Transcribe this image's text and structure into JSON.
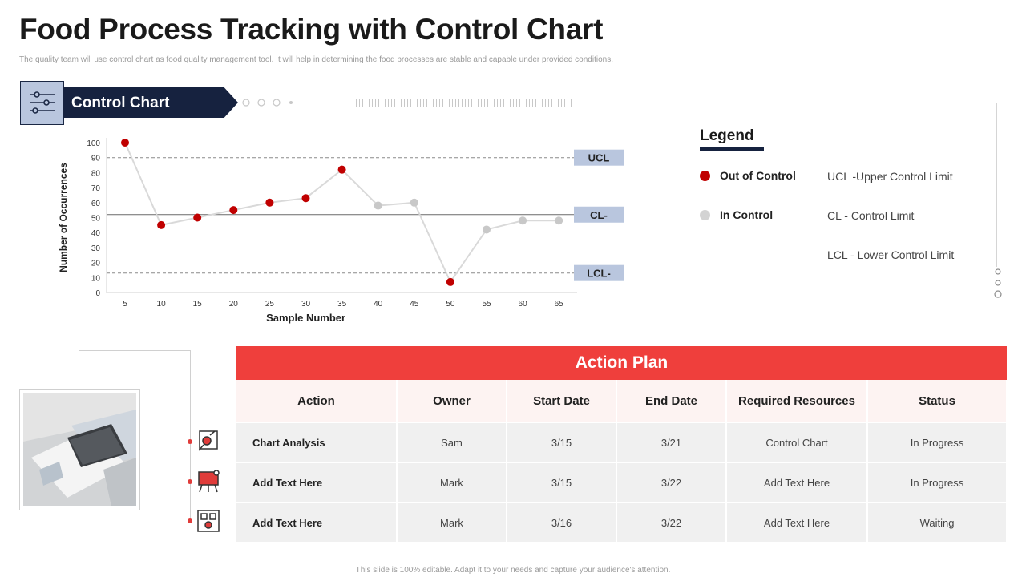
{
  "title": "Food Process Tracking with Control Chart",
  "subtitle": "The quality team will use control chart as food quality management tool. It will help in determining the food processes are stable and capable under provided conditions.",
  "banner": {
    "label": "Control Chart",
    "icon": "sliders-icon"
  },
  "chart_data": {
    "type": "line",
    "title": "Control Chart",
    "xlabel": "Sample Number",
    "ylabel": "Number of Occurrences",
    "x": [
      5,
      10,
      15,
      20,
      25,
      30,
      35,
      40,
      45,
      50,
      55,
      60,
      65
    ],
    "y": [
      100,
      45,
      50,
      55,
      60,
      63,
      82,
      58,
      60,
      7,
      42,
      48,
      48
    ],
    "status": [
      "out",
      "out",
      "out",
      "out",
      "out",
      "out",
      "out",
      "in",
      "in",
      "out",
      "in",
      "in",
      "in"
    ],
    "ylim": [
      0,
      100
    ],
    "yticks": [
      0,
      10,
      20,
      30,
      40,
      50,
      60,
      70,
      80,
      90,
      100
    ],
    "control_lines": [
      {
        "label": "UCL",
        "value": 90
      },
      {
        "label": "CL-",
        "value": 52
      },
      {
        "label": "LCL-",
        "value": 13
      }
    ],
    "grid": false,
    "colors": {
      "out": "#c00000",
      "in": "#c8c8c8",
      "line": "#d9d9d9",
      "label_bg": "#b9c6de"
    }
  },
  "legend": {
    "title": "Legend",
    "items": [
      {
        "label": "Out of Control",
        "color": "#c00000"
      },
      {
        "label": "In Control",
        "color": "#d3d3d3"
      }
    ],
    "definitions": [
      "UCL -Upper Control Limit",
      "CL - Control Limit",
      "LCL - Lower Control Limit"
    ]
  },
  "action_plan": {
    "title": "Action Plan",
    "columns": [
      "Action",
      "Owner",
      "Start Date",
      "End Date",
      "Required Resources",
      "Status"
    ],
    "rows": [
      [
        "Chart Analysis",
        "Sam",
        "3/15",
        "3/21",
        "Control Chart",
        "In Progress"
      ],
      [
        "Add  Text Here",
        "Mark",
        "3/15",
        "3/22",
        "Add Text  Here",
        "In Progress"
      ],
      [
        "Add  Text Here",
        "Mark",
        "3/16",
        "3/22",
        "Add Text  Here",
        "Waiting"
      ]
    ],
    "row_icons": [
      "analysis-icon",
      "presentation-icon",
      "process-icon"
    ]
  },
  "footer": "This slide is 100% editable. Adapt it to your needs and capture your audience's attention."
}
